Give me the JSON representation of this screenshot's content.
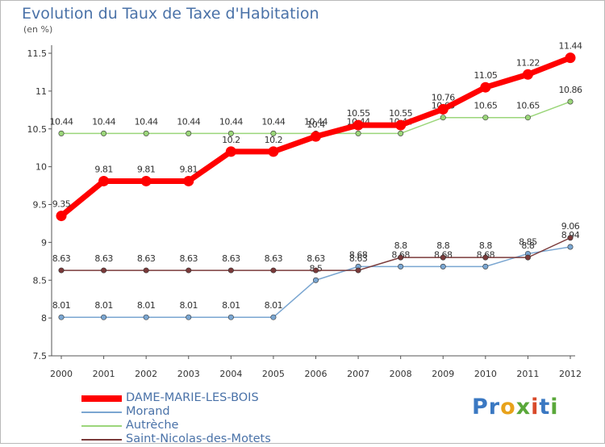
{
  "title": "Evolution du Taux de Taxe d'Habitation",
  "unit": "(en %)",
  "brand": {
    "letters": [
      {
        "ch": "P",
        "color": "#3a78c2"
      },
      {
        "ch": "r",
        "color": "#3a78c2"
      },
      {
        "ch": "o",
        "color": "#e8a21a"
      },
      {
        "ch": "x",
        "color": "#5aa83a"
      },
      {
        "ch": "i",
        "color": "#d84a2a"
      },
      {
        "ch": "t",
        "color": "#3a78c2"
      },
      {
        "ch": "i",
        "color": "#5aa83a"
      }
    ]
  },
  "chart_data": {
    "type": "line",
    "x": [
      "2000",
      "2001",
      "2002",
      "2003",
      "2004",
      "2005",
      "2006",
      "2007",
      "2008",
      "2009",
      "2010",
      "2011",
      "2012"
    ],
    "ylim": [
      7.5,
      11.5
    ],
    "yticks": [
      "7.5",
      "8",
      "8.5",
      "9",
      "9.5",
      "10",
      "10.5",
      "11",
      "11.5"
    ],
    "grid": false,
    "legend_position": "bottom-left",
    "series": [
      {
        "name": "DAME-MARIE-LES-BOIS",
        "color": "#ff0000",
        "values": [
          9.35,
          9.81,
          9.81,
          9.81,
          10.2,
          10.2,
          10.4,
          10.55,
          10.55,
          10.76,
          11.05,
          11.22,
          11.44
        ],
        "labels": [
          "9.35",
          "9.81",
          "9.81",
          "9.81",
          "10.2",
          "10.2",
          "10.4",
          "10.55",
          "10.55",
          "10.76",
          "11.05",
          "11.22",
          "11.44"
        ]
      },
      {
        "name": "Morand",
        "color": "#7aa6d1",
        "values": [
          8.01,
          8.01,
          8.01,
          8.01,
          8.01,
          8.01,
          8.5,
          8.68,
          8.68,
          8.68,
          8.68,
          8.85,
          8.94
        ],
        "labels": [
          "8.01",
          "8.01",
          "8.01",
          "8.01",
          "8.01",
          "8.01",
          "8.5",
          "8.68",
          "8.68",
          "8.68",
          "8.68",
          "8.85",
          "8.94"
        ]
      },
      {
        "name": "Autrèche",
        "color": "#9bd67a",
        "values": [
          10.44,
          10.44,
          10.44,
          10.44,
          10.44,
          10.44,
          10.44,
          10.44,
          10.44,
          10.65,
          10.65,
          10.65,
          10.86
        ],
        "labels": [
          "10.44",
          "10.44",
          "10.44",
          "10.44",
          "10.44",
          "10.44",
          "10.44",
          "10.44",
          "10.44",
          "10.65",
          "10.65",
          "10.65",
          "10.86"
        ]
      },
      {
        "name": "Saint-Nicolas-des-Motets",
        "color": "#7a3a3a",
        "values": [
          8.63,
          8.63,
          8.63,
          8.63,
          8.63,
          8.63,
          8.63,
          8.63,
          8.8,
          8.8,
          8.8,
          8.8,
          9.06
        ],
        "labels": [
          "8.63",
          "8.63",
          "8.63",
          "8.63",
          "8.63",
          "8.63",
          "8.63",
          "8.63",
          "8.8",
          "8.8",
          "8.8",
          "8.8",
          "9.06"
        ]
      }
    ]
  }
}
